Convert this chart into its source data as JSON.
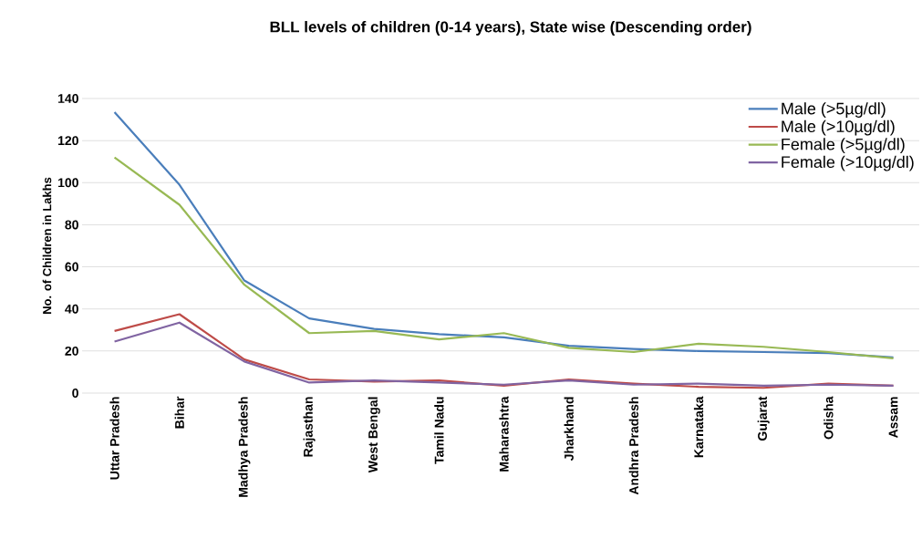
{
  "chart_data": {
    "type": "line",
    "title": "BLL levels of children (0-14 years), State wise (Descending order)",
    "ylabel": "No. of Children in Lakhs",
    "categories": [
      "Uttar Pradesh",
      "Bihar",
      "Madhya Pradesh",
      "Rajasthan",
      "West Bengal",
      "Tamil Nadu",
      "Maharashtra",
      "Jharkhand",
      "Andhra Pradesh",
      "Karnataka",
      "Gujarat",
      "Odisha",
      "Assam"
    ],
    "series": [
      {
        "name": "Male (>5µg/dl)",
        "color": "#4a7ebb",
        "values": [
          133.5,
          99,
          53.5,
          35.5,
          30.5,
          28,
          26.5,
          22.5,
          21,
          20,
          19.5,
          19,
          17
        ]
      },
      {
        "name": "Male (>10µg/dl)",
        "color": "#be4b48",
        "values": [
          29.5,
          37.5,
          16,
          6.5,
          5.5,
          6,
          3.5,
          6.5,
          4.5,
          3,
          2.5,
          4.5,
          3.5
        ]
      },
      {
        "name": "Female (>5µg/dl)",
        "color": "#98b954",
        "values": [
          112,
          89.5,
          51.5,
          28.5,
          29.5,
          25.5,
          28.5,
          21.5,
          19.5,
          23.5,
          22,
          19.5,
          16.5
        ]
      },
      {
        "name": "Female (>10µg/dl)",
        "color": "#8064a2",
        "values": [
          24.5,
          33.5,
          15,
          5,
          6,
          5,
          4,
          6,
          4,
          4.5,
          3.5,
          4,
          3.5
        ]
      }
    ],
    "ylim": [
      0,
      140
    ],
    "yticks": [
      0,
      20,
      40,
      60,
      80,
      100,
      120,
      140
    ],
    "grid": "y",
    "legend": "top right",
    "marker": "none",
    "line_style": "solid"
  }
}
